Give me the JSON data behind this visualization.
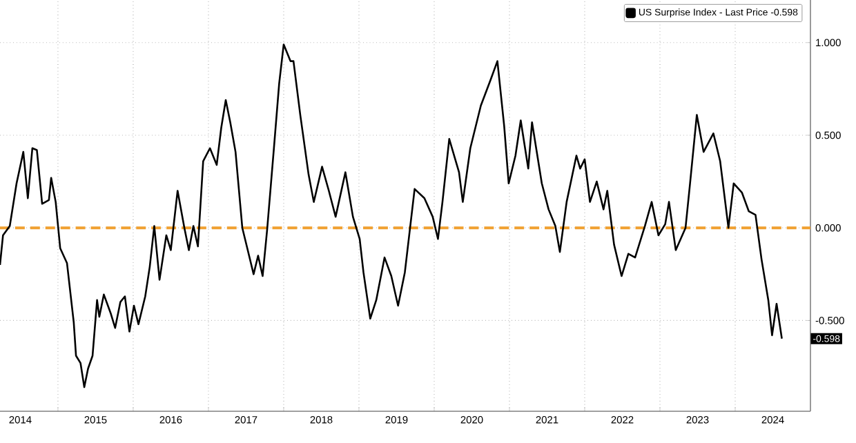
{
  "chart_data": {
    "type": "line",
    "x": [
      2014.23,
      2014.27,
      2014.36,
      2014.45,
      2014.54,
      2014.6,
      2014.66,
      2014.72,
      2014.79,
      2014.88,
      2014.91,
      2014.97,
      2015.03,
      2015.12,
      2015.21,
      2015.24,
      2015.3,
      2015.35,
      2015.4,
      2015.46,
      2015.52,
      2015.55,
      2015.61,
      2015.7,
      2015.76,
      2015.83,
      2015.89,
      2015.95,
      2016.01,
      2016.07,
      2016.16,
      2016.22,
      2016.28,
      2016.35,
      2016.44,
      2016.5,
      2016.59,
      2016.68,
      2016.74,
      2016.8,
      2016.86,
      2016.93,
      2017.02,
      2017.11,
      2017.17,
      2017.23,
      2017.29,
      2017.36,
      2017.45,
      2017.51,
      2017.6,
      2017.66,
      2017.72,
      2017.78,
      2017.87,
      2017.94,
      2018.0,
      2018.09,
      2018.13,
      2018.22,
      2018.33,
      2018.4,
      2018.51,
      2018.6,
      2018.69,
      2018.82,
      2018.92,
      2019.01,
      2019.06,
      2019.15,
      2019.23,
      2019.34,
      2019.43,
      2019.52,
      2019.61,
      2019.74,
      2019.87,
      2019.98,
      2020.05,
      2020.11,
      2020.2,
      2020.33,
      2020.38,
      2020.48,
      2020.62,
      2020.75,
      2020.84,
      2020.93,
      2020.99,
      2021.08,
      2021.15,
      2021.25,
      2021.3,
      2021.43,
      2021.52,
      2021.61,
      2021.67,
      2021.76,
      2021.89,
      2021.94,
      2022.0,
      2022.07,
      2022.16,
      2022.25,
      2022.3,
      2022.39,
      2022.49,
      2022.58,
      2022.67,
      2022.8,
      2022.89,
      2022.98,
      2023.07,
      2023.12,
      2023.21,
      2023.34,
      2023.4,
      2023.49,
      2023.58,
      2023.71,
      2023.8,
      2023.91,
      2023.98,
      2024.09,
      2024.18,
      2024.27,
      2024.35,
      2024.44,
      2024.49,
      2024.55,
      2024.62
    ],
    "series": [
      {
        "name": "US Surprise Index - Last Price -0.598",
        "color": "#000000",
        "values": [
          -0.2,
          -0.04,
          0.01,
          0.24,
          0.41,
          0.16,
          0.43,
          0.42,
          0.13,
          0.15,
          0.27,
          0.14,
          -0.11,
          -0.19,
          -0.51,
          -0.69,
          -0.73,
          -0.86,
          -0.76,
          -0.69,
          -0.39,
          -0.48,
          -0.36,
          -0.46,
          -0.54,
          -0.4,
          -0.37,
          -0.56,
          -0.42,
          -0.52,
          -0.37,
          -0.21,
          0.01,
          -0.28,
          -0.04,
          -0.12,
          0.2,
          0.0,
          -0.12,
          0.01,
          -0.1,
          0.36,
          0.43,
          0.34,
          0.54,
          0.69,
          0.57,
          0.41,
          0.0,
          -0.1,
          -0.25,
          -0.15,
          -0.26,
          -0.01,
          0.43,
          0.78,
          0.99,
          0.9,
          0.9,
          0.61,
          0.29,
          0.14,
          0.33,
          0.2,
          0.06,
          0.3,
          0.06,
          -0.06,
          -0.24,
          -0.49,
          -0.39,
          -0.16,
          -0.26,
          -0.42,
          -0.24,
          0.21,
          0.16,
          0.06,
          -0.06,
          0.14,
          0.48,
          0.3,
          0.14,
          0.43,
          0.66,
          0.8,
          0.9,
          0.55,
          0.24,
          0.39,
          0.58,
          0.32,
          0.57,
          0.24,
          0.1,
          0.01,
          -0.13,
          0.14,
          0.39,
          0.32,
          0.37,
          0.14,
          0.25,
          0.1,
          0.2,
          -0.09,
          -0.26,
          -0.14,
          -0.16,
          0.01,
          0.14,
          -0.04,
          0.02,
          0.14,
          -0.12,
          0.0,
          0.24,
          0.61,
          0.41,
          0.51,
          0.36,
          0.0,
          0.24,
          0.19,
          0.09,
          0.07,
          -0.17,
          -0.39,
          -0.58,
          -0.41,
          -0.598
        ]
      }
    ],
    "xlim": [
      2014.23,
      2025.0
    ],
    "xticks": [
      {
        "value": 2015,
        "label": null
      },
      {
        "value": 2016,
        "label": null
      },
      {
        "value": 2017,
        "label": null
      },
      {
        "value": 2018,
        "label": null
      },
      {
        "value": 2019,
        "label": null
      },
      {
        "value": 2020,
        "label": null
      },
      {
        "value": 2021,
        "label": null
      },
      {
        "value": 2022,
        "label": null
      },
      {
        "value": 2023,
        "label": null
      },
      {
        "value": 2024,
        "label": null
      },
      {
        "value": 2014.5,
        "label": "2014"
      },
      {
        "value": 2015.5,
        "label": "2015"
      },
      {
        "value": 2016.5,
        "label": "2016"
      },
      {
        "value": 2017.5,
        "label": "2017"
      },
      {
        "value": 2018.5,
        "label": "2018"
      },
      {
        "value": 2019.5,
        "label": "2019"
      },
      {
        "value": 2020.5,
        "label": "2020"
      },
      {
        "value": 2021.5,
        "label": "2021"
      },
      {
        "value": 2022.5,
        "label": "2022"
      },
      {
        "value": 2023.5,
        "label": "2023"
      },
      {
        "value": 2024.5,
        "label": "2024"
      }
    ],
    "ylim": [
      -0.99,
      1.23
    ],
    "yticks": [
      {
        "value": 1,
        "label": "1.000"
      },
      {
        "value": 0.5,
        "label": "0.500"
      },
      {
        "value": 0,
        "label": "0.000"
      },
      {
        "value": -0.5,
        "label": "-0.500"
      }
    ],
    "ref_lines": [
      {
        "axis": "y",
        "value": 0,
        "color": "#f0a030",
        "line_style": "dashed"
      }
    ],
    "annotations": [
      {
        "text": "-0.598",
        "y": -0.598
      }
    ],
    "grid": true,
    "legend": "top right",
    "marker": "none",
    "line_style": "solid"
  }
}
